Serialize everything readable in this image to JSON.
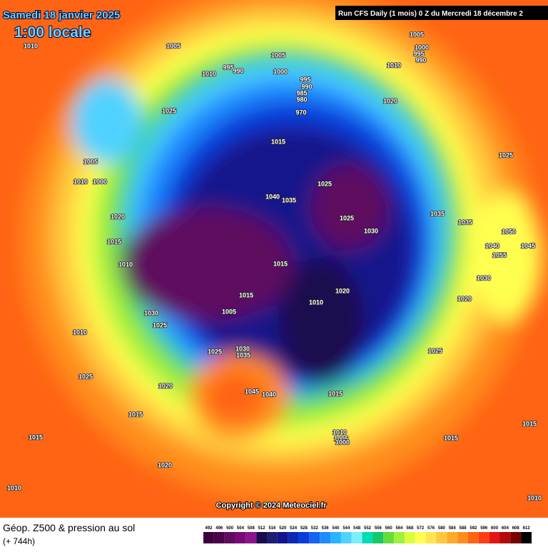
{
  "header": {
    "date": "Samedi 18 janvier 2025",
    "time": "1:00 locale",
    "run": "Run CFS Daily (1 mois) 0 Z du Mercredi 18 décembre 2"
  },
  "copyright": "Copyright © 2024 Meteociel.fr",
  "legend": {
    "title": "Géop. Z500 & pression au sol",
    "lead": "(+ 744h)",
    "values": [
      492,
      496,
      500,
      504,
      508,
      512,
      516,
      520,
      524,
      528,
      532,
      536,
      540,
      544,
      548,
      552,
      556,
      560,
      564,
      568,
      572,
      576,
      580,
      584,
      588,
      592,
      596,
      600,
      604,
      608,
      612
    ],
    "colors": [
      "#3c003c",
      "#4b004b",
      "#5f0a5f",
      "#780a78",
      "#8c148c",
      "#1a0a50",
      "#1e1e6e",
      "#14148c",
      "#0a28b4",
      "#0a3cdc",
      "#1464f0",
      "#1e8cff",
      "#28b4ff",
      "#50d2ff",
      "#78f0ff",
      "#00dcb4",
      "#14c864",
      "#64dc3c",
      "#a0f03c",
      "#dcff3c",
      "#ffff50",
      "#ffe650",
      "#ffc83c",
      "#ffaa28",
      "#ff8c1e",
      "#ff6414",
      "#ff3c14",
      "#e61414",
      "#b40a0a",
      "#780000",
      "#000000"
    ]
  },
  "isobar_labels": [
    "1010",
    "1005",
    "1010",
    "995",
    "990",
    "1005",
    "1000",
    "995",
    "990",
    "985",
    "980",
    "970",
    "1025",
    "1015",
    "1005",
    "1010",
    "1000",
    "1020",
    "1015",
    "1010",
    "1025",
    "1040",
    "1035",
    "1025",
    "1030",
    "1015",
    "1020",
    "1010",
    "1015",
    "1005",
    "1030",
    "1025",
    "1010",
    "1025",
    "1030",
    "1035",
    "1025",
    "1020",
    "1045",
    "1040",
    "1015",
    "1015",
    "1020",
    "1010",
    "1005",
    "1000",
    "995",
    "990",
    "1010",
    "1020",
    "1025",
    "1035",
    "1035",
    "1050",
    "1040",
    "1045",
    "1055",
    "1030",
    "1020",
    "1025",
    "1015",
    "1010",
    "1005",
    "1000",
    "1015",
    "1015",
    "1010"
  ]
}
